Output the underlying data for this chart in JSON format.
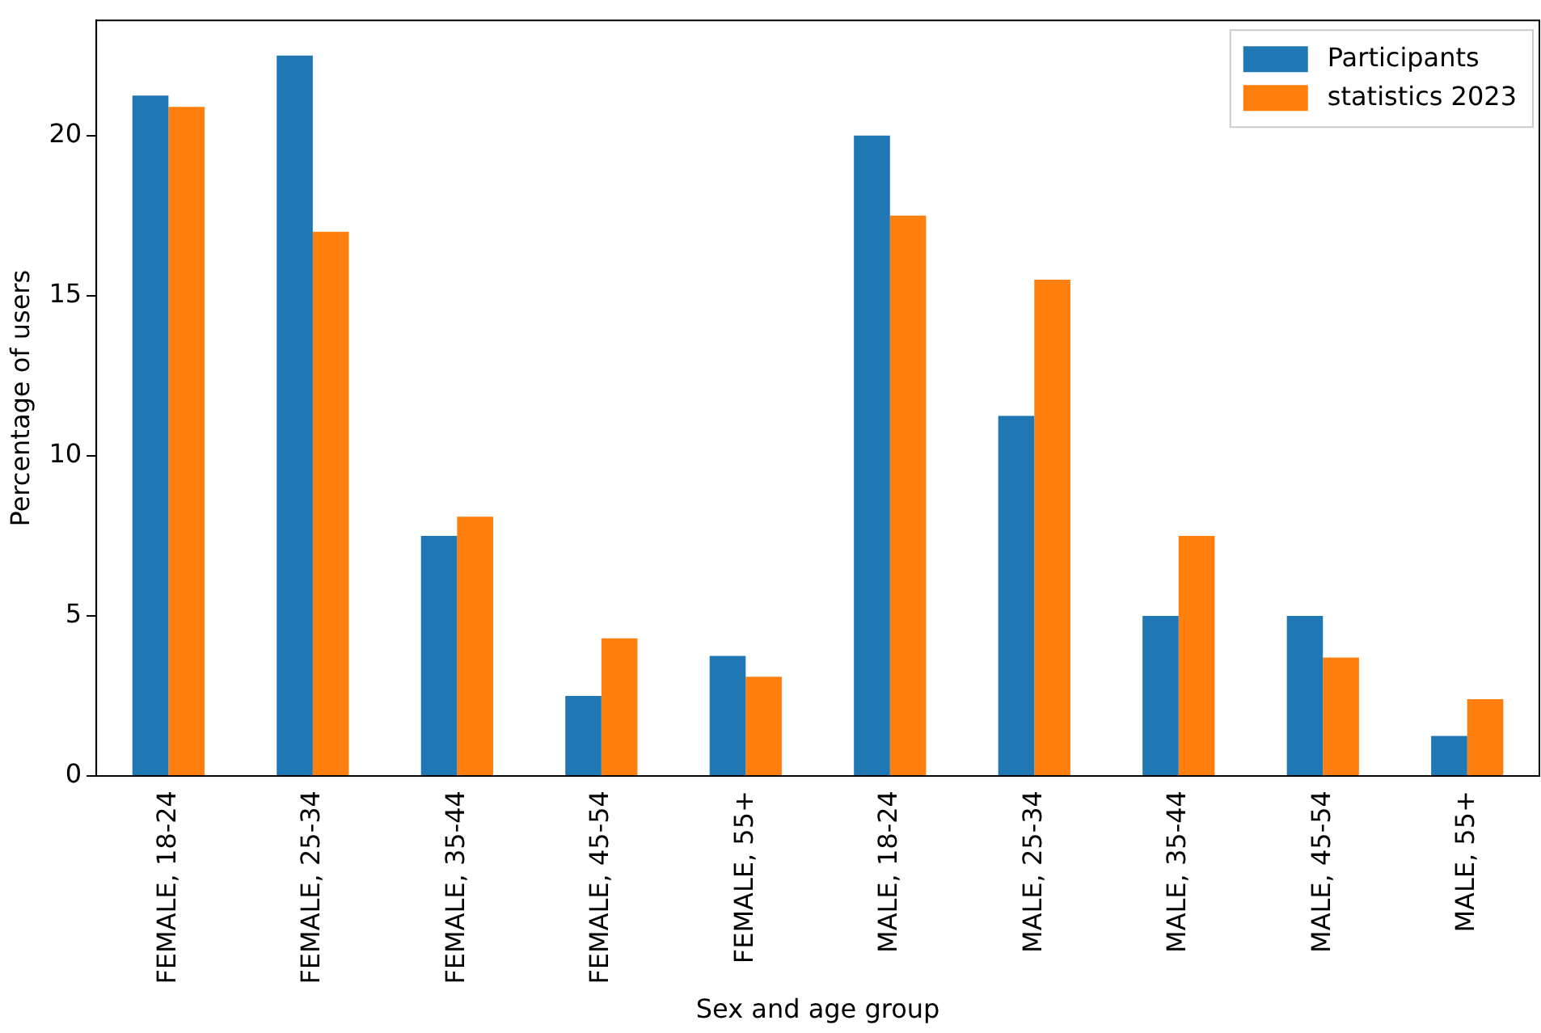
{
  "chart_data": {
    "type": "bar",
    "xlabel": "Sex and age group",
    "ylabel": "Percentage of users",
    "categories": [
      "FEMALE, 18-24",
      "FEMALE, 25-34",
      "FEMALE, 35-44",
      "FEMALE, 45-54",
      "FEMALE, 55+",
      "MALE, 18-24",
      "MALE, 25-34",
      "MALE, 35-44",
      "MALE, 45-54",
      "MALE, 55+"
    ],
    "series": [
      {
        "name": "Participants",
        "color": "#1f77b4",
        "values": [
          21.25,
          22.5,
          7.5,
          2.5,
          3.75,
          20,
          11.25,
          5,
          5,
          1.25
        ]
      },
      {
        "name": "statistics 2023",
        "color": "#ff7f0e",
        "values": [
          20.9,
          17,
          8.1,
          4.3,
          3.1,
          17.5,
          15.5,
          7.5,
          3.7,
          2.4
        ]
      }
    ],
    "ylim": [
      0,
      23.6
    ],
    "yticks": [
      0,
      5,
      10,
      15,
      20
    ],
    "grid": false,
    "legend": "top right"
  }
}
